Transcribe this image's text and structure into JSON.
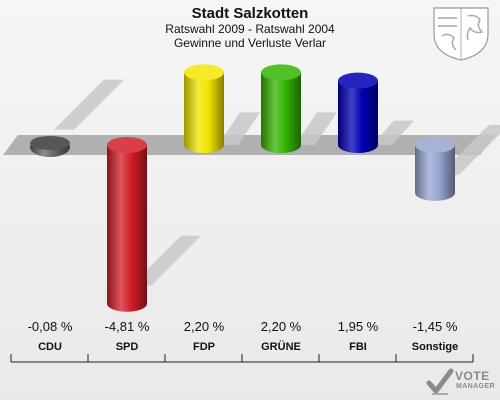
{
  "header": {
    "title": "Stadt Salzkotten",
    "subtitle1": "Ratswahl 2009 - Ratswahl 2004",
    "subtitle2": "Gewinne und Verluste Verlar"
  },
  "branding": {
    "line1": "VOTE",
    "line2": "MANAGER"
  },
  "chart_data": {
    "type": "bar",
    "categories": [
      "CDU",
      "SPD",
      "FDP",
      "GRÜNE",
      "FBI",
      "Sonstige"
    ],
    "values": [
      -0.08,
      -4.81,
      2.2,
      2.2,
      1.95,
      -1.45
    ],
    "value_labels": [
      "-0,08 %",
      "-4,81 %",
      "2,20 %",
      "2,20 %",
      "1,95 %",
      "-1,45 %"
    ],
    "colors": [
      "#666666",
      "#d41d28",
      "#f2e600",
      "#33b500",
      "#0000b4",
      "#96a6d0"
    ],
    "title": "Stadt Salzkotten",
    "subtitle": "Ratswahl 2009 - Ratswahl 2004 · Gewinne und Verluste Verlar",
    "xlabel": "",
    "ylabel": "",
    "unit": "%",
    "grid": false,
    "legend": "none"
  }
}
